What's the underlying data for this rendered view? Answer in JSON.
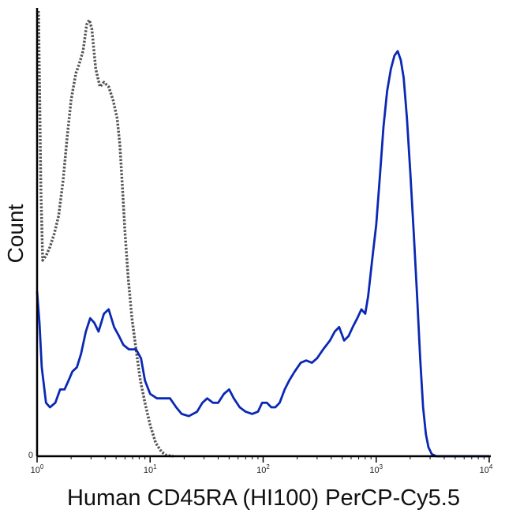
{
  "chart_data": {
    "type": "line",
    "title": "",
    "xlabel": "Human CD45RA (HI100) PerCP-Cy5.5",
    "ylabel": "Count",
    "x_scale": "log",
    "xlim": [
      1,
      10000
    ],
    "ylim": [
      0,
      100
    ],
    "x_ticks": [
      {
        "value": 1,
        "base": "10",
        "exp": "0"
      },
      {
        "value": 10,
        "base": "10",
        "exp": "1"
      },
      {
        "value": 100,
        "base": "10",
        "exp": "2"
      },
      {
        "value": 1000,
        "base": "10",
        "exp": "3"
      },
      {
        "value": 10000,
        "base": "10",
        "exp": "4"
      }
    ],
    "y_ticks": [
      {
        "value": 0,
        "label": "0"
      }
    ],
    "grid": false,
    "legend": "none",
    "series": [
      {
        "style": "dotted",
        "color": "#555555",
        "points": [
          [
            1.03,
            100
          ],
          [
            1.05,
            85
          ],
          [
            1.08,
            60
          ],
          [
            1.12,
            44
          ],
          [
            1.2,
            45
          ],
          [
            1.3,
            47
          ],
          [
            1.42,
            50
          ],
          [
            1.55,
            54
          ],
          [
            1.7,
            62
          ],
          [
            1.85,
            72
          ],
          [
            2.0,
            80
          ],
          [
            2.2,
            86
          ],
          [
            2.35,
            88
          ],
          [
            2.55,
            91
          ],
          [
            2.75,
            97
          ],
          [
            2.9,
            98
          ],
          [
            3.05,
            96
          ],
          [
            3.3,
            87
          ],
          [
            3.6,
            83
          ],
          [
            3.9,
            84
          ],
          [
            4.3,
            83
          ],
          [
            4.7,
            80
          ],
          [
            5.1,
            76
          ],
          [
            5.4,
            70
          ],
          [
            5.7,
            60
          ],
          [
            6.0,
            50
          ],
          [
            6.4,
            40
          ],
          [
            6.9,
            31
          ],
          [
            7.5,
            24
          ],
          [
            8.2,
            17
          ],
          [
            9.0,
            12
          ],
          [
            10.0,
            7
          ],
          [
            11.2,
            3
          ],
          [
            12.6,
            1
          ],
          [
            14,
            0.2
          ],
          [
            16,
            0
          ]
        ]
      },
      {
        "style": "solid",
        "color": "#0a28b4",
        "points": [
          [
            1.0,
            37
          ],
          [
            1.05,
            30
          ],
          [
            1.1,
            20
          ],
          [
            1.2,
            12
          ],
          [
            1.3,
            11
          ],
          [
            1.45,
            12
          ],
          [
            1.6,
            15
          ],
          [
            1.75,
            15
          ],
          [
            1.9,
            17
          ],
          [
            2.05,
            19
          ],
          [
            2.25,
            20
          ],
          [
            2.45,
            23
          ],
          [
            2.7,
            28
          ],
          [
            2.95,
            31
          ],
          [
            3.2,
            30
          ],
          [
            3.5,
            28
          ],
          [
            3.9,
            32
          ],
          [
            4.3,
            33
          ],
          [
            4.8,
            29
          ],
          [
            5.3,
            27
          ],
          [
            5.8,
            25
          ],
          [
            6.5,
            24
          ],
          [
            7.5,
            24
          ],
          [
            8.3,
            22
          ],
          [
            9.0,
            17
          ],
          [
            10.0,
            14
          ],
          [
            11.5,
            13
          ],
          [
            13,
            13
          ],
          [
            15,
            13
          ],
          [
            17,
            11
          ],
          [
            19,
            9.5
          ],
          [
            22,
            9
          ],
          [
            26,
            10
          ],
          [
            29,
            12
          ],
          [
            32,
            13
          ],
          [
            36,
            12
          ],
          [
            40,
            12
          ],
          [
            45,
            14
          ],
          [
            50,
            15
          ],
          [
            55,
            13
          ],
          [
            62,
            11
          ],
          [
            70,
            10
          ],
          [
            80,
            9.5
          ],
          [
            90,
            10
          ],
          [
            98,
            12
          ],
          [
            108,
            12
          ],
          [
            118,
            11
          ],
          [
            128,
            11
          ],
          [
            140,
            12
          ],
          [
            155,
            15
          ],
          [
            170,
            17
          ],
          [
            190,
            19
          ],
          [
            215,
            21
          ],
          [
            240,
            21.5
          ],
          [
            270,
            21
          ],
          [
            300,
            22
          ],
          [
            340,
            24
          ],
          [
            390,
            26
          ],
          [
            430,
            28
          ],
          [
            470,
            29
          ],
          [
            520,
            26
          ],
          [
            570,
            27
          ],
          [
            620,
            29
          ],
          [
            680,
            31
          ],
          [
            740,
            33
          ],
          [
            800,
            32
          ],
          [
            850,
            36
          ],
          [
            920,
            44
          ],
          [
            1000,
            52
          ],
          [
            1080,
            63
          ],
          [
            1160,
            74
          ],
          [
            1250,
            82
          ],
          [
            1350,
            87
          ],
          [
            1450,
            90
          ],
          [
            1550,
            91
          ],
          [
            1650,
            89
          ],
          [
            1750,
            85
          ],
          [
            1870,
            76
          ],
          [
            2000,
            64
          ],
          [
            2150,
            50
          ],
          [
            2300,
            36
          ],
          [
            2450,
            22
          ],
          [
            2600,
            11
          ],
          [
            2750,
            5
          ],
          [
            2900,
            2
          ],
          [
            3100,
            0.5
          ],
          [
            3400,
            0
          ],
          [
            5000,
            0
          ],
          [
            10000,
            0
          ]
        ]
      }
    ]
  }
}
